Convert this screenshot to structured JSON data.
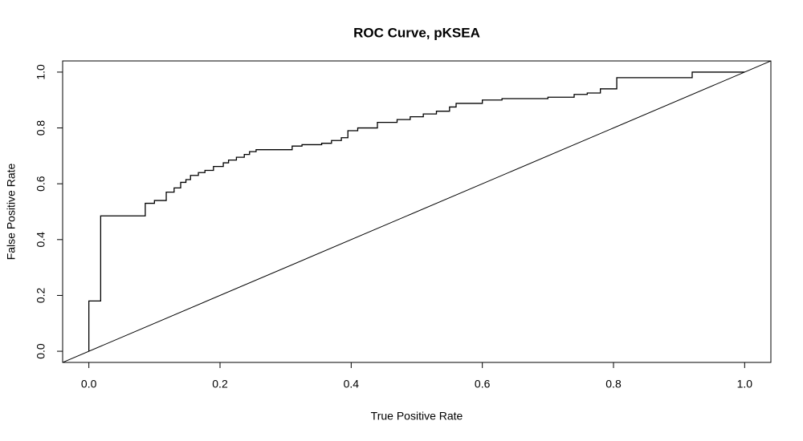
{
  "chart_data": {
    "type": "line",
    "title": "ROC Curve, pKSEA",
    "x_label": "True Positive Rate",
    "y_label": "False Positive Rate",
    "color": "#000000",
    "x": [
      0,
      0,
      0.018,
      0.018,
      0.086,
      0.086,
      0.1,
      0.1,
      0.118,
      0.118,
      0.13,
      0.13,
      0.14,
      0.14,
      0.148,
      0.148,
      0.155,
      0.155,
      0.167,
      0.167,
      0.177,
      0.177,
      0.19,
      0.19,
      0.205,
      0.205,
      0.213,
      0.213,
      0.225,
      0.225,
      0.237,
      0.237,
      0.245,
      0.245,
      0.255,
      0.255,
      0.31,
      0.31,
      0.325,
      0.325,
      0.355,
      0.355,
      0.37,
      0.37,
      0.385,
      0.385,
      0.395,
      0.395,
      0.41,
      0.41,
      0.44,
      0.44,
      0.47,
      0.47,
      0.49,
      0.49,
      0.51,
      0.51,
      0.53,
      0.53,
      0.55,
      0.55,
      0.56,
      0.56,
      0.6,
      0.6,
      0.63,
      0.63,
      0.7,
      0.7,
      0.74,
      0.74,
      0.76,
      0.76,
      0.78,
      0.78,
      0.805,
      0.805,
      0.92,
      0.92,
      1
    ],
    "values": [
      0,
      0.18,
      0.18,
      0.485,
      0.485,
      0.53,
      0.53,
      0.54,
      0.54,
      0.57,
      0.57,
      0.585,
      0.585,
      0.605,
      0.605,
      0.615,
      0.615,
      0.63,
      0.63,
      0.64,
      0.64,
      0.648,
      0.648,
      0.662,
      0.662,
      0.675,
      0.675,
      0.685,
      0.685,
      0.695,
      0.695,
      0.705,
      0.705,
      0.715,
      0.715,
      0.722,
      0.722,
      0.735,
      0.735,
      0.74,
      0.74,
      0.745,
      0.745,
      0.755,
      0.755,
      0.765,
      0.765,
      0.79,
      0.79,
      0.8,
      0.8,
      0.82,
      0.82,
      0.83,
      0.83,
      0.84,
      0.84,
      0.85,
      0.85,
      0.86,
      0.86,
      0.875,
      0.875,
      0.888,
      0.888,
      0.9,
      0.9,
      0.905,
      0.905,
      0.91,
      0.91,
      0.92,
      0.92,
      0.925,
      0.925,
      0.94,
      0.94,
      0.98,
      0.98,
      1,
      1
    ],
    "reference_line": {
      "intercept": 0,
      "slope": 1
    },
    "xlim": [
      -0.04,
      1.04
    ],
    "ylim": [
      -0.04,
      1.04
    ],
    "xticks": [
      {
        "value": 0,
        "label": "0.0"
      },
      0.2,
      0.4,
      0.6,
      0.8,
      {
        "value": 1,
        "label": "1.0"
      }
    ],
    "yticks": [
      {
        "value": 0,
        "label": "0.0"
      },
      0.2,
      0.4,
      0.6,
      0.8,
      {
        "value": 1,
        "label": "1.0"
      }
    ]
  }
}
